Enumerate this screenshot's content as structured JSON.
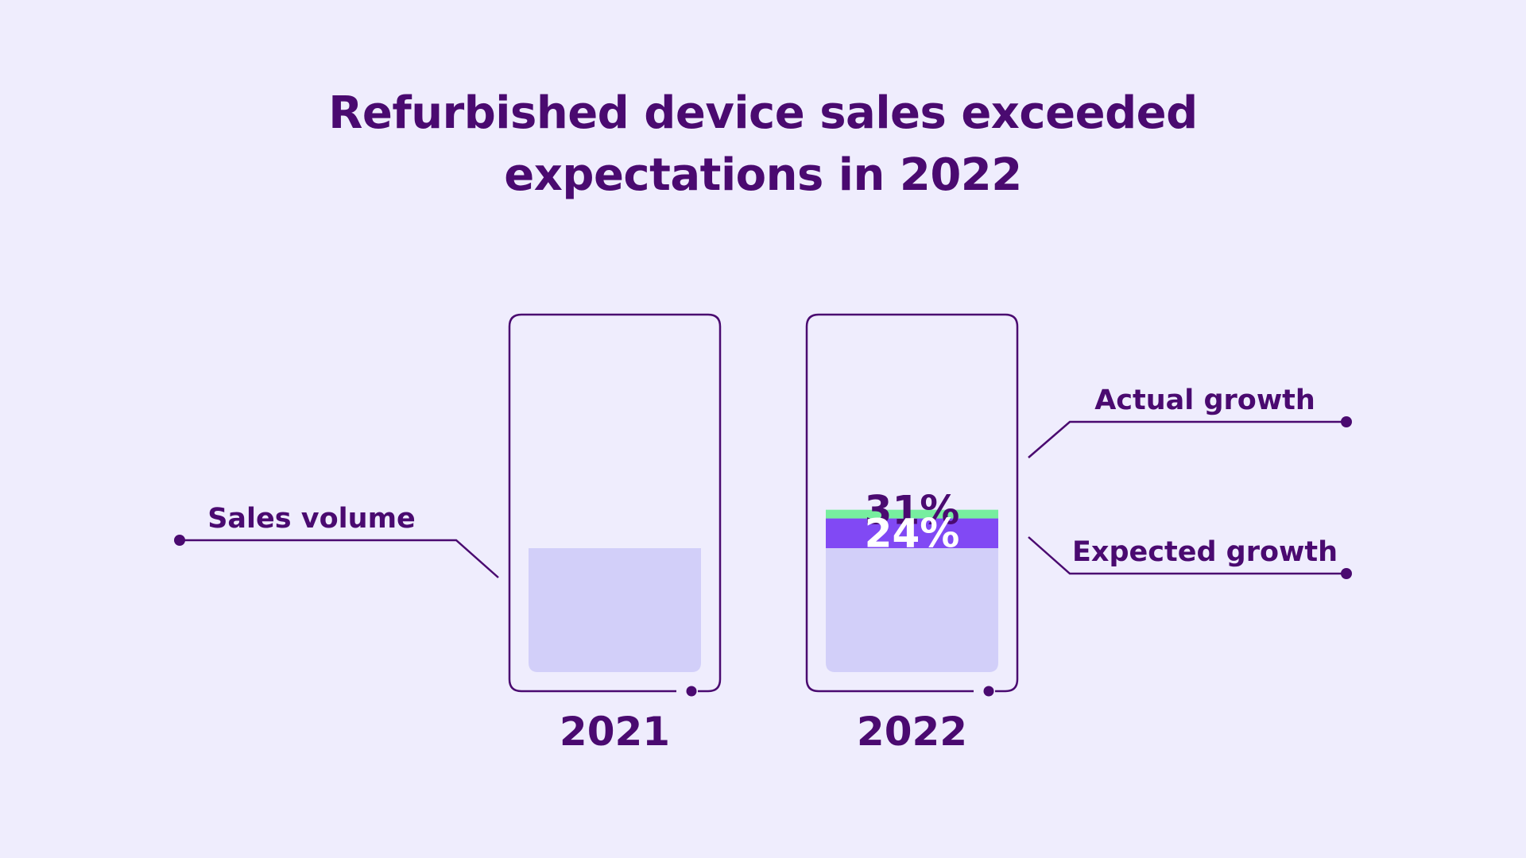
{
  "title_lines": [
    "Refurbished device sales exceeded",
    "expectations in 2022"
  ],
  "colors": {
    "background": "#EFEDFD",
    "outline": "#4A0A70",
    "sales_volume": "#D2CFF9",
    "expected_growth": "#8149F4",
    "actual_growth": "#77EE9F",
    "label_text": "#4A0A70",
    "expected_label_text": "#FFFFFF"
  },
  "chart_data": {
    "type": "bar",
    "categories": [
      "2021",
      "2022"
    ],
    "series": [
      {
        "name": "Sales volume",
        "values": [
          100,
          100
        ]
      },
      {
        "name": "Expected growth",
        "values": [
          0,
          24
        ]
      },
      {
        "name": "Actual growth",
        "values": [
          0,
          7
        ]
      }
    ],
    "data_labels": [
      {
        "category": "2022",
        "series": "Actual growth",
        "text": "31%"
      },
      {
        "category": "2022",
        "series": "Expected growth",
        "text": "24%"
      }
    ],
    "legend": [
      {
        "text": "Sales volume",
        "placement": "left"
      },
      {
        "text": "Actual growth",
        "placement": "right-upper"
      },
      {
        "text": "Expected growth",
        "placement": "right-lower"
      }
    ],
    "stacked": true,
    "grid": false
  }
}
